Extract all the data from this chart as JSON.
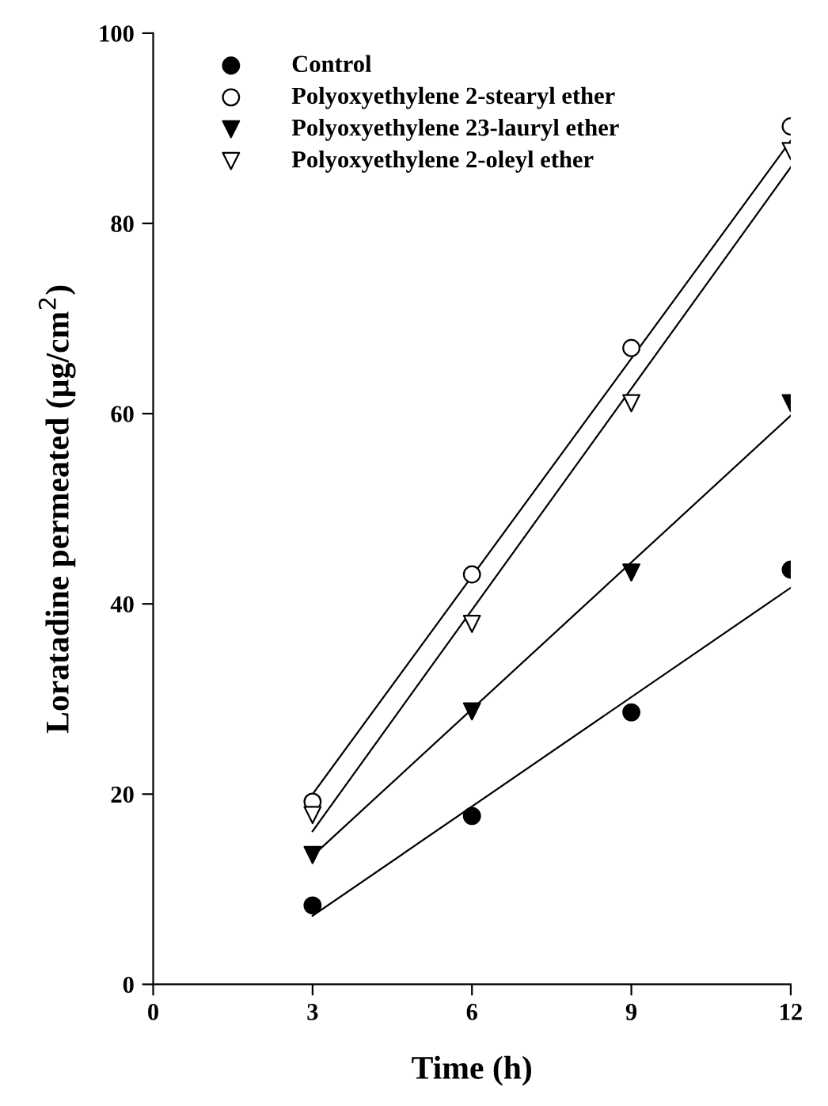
{
  "chart_data": {
    "type": "scatter",
    "xlabel": "Time (h)",
    "ylabel": "Loratadine permeated (µg/cm$^{2}$)",
    "xlim": [
      0,
      12
    ],
    "ylim": [
      0,
      100
    ],
    "xticks": [
      0,
      3,
      6,
      9,
      12
    ],
    "yticks": [
      0,
      20,
      40,
      60,
      80,
      100
    ],
    "grid": false,
    "legend": "top left",
    "series": [
      {
        "name": "Control",
        "color": "#000000",
        "marker": "circle",
        "x": [
          3,
          6,
          9,
          12
        ],
        "values": [
          8.3,
          17.7,
          28.6,
          43.6
        ]
      },
      {
        "name": "Polyoxyethylene 2-stearyl ether",
        "color": "#ffffff",
        "marker": "circle",
        "x": [
          3,
          6,
          9,
          12
        ],
        "values": [
          19.2,
          43.1,
          66.9,
          90.2
        ]
      },
      {
        "name": "Polyoxyethylene 23-lauryl ether",
        "color": "#000000",
        "marker": "triangle",
        "x": [
          3,
          6,
          9,
          12
        ],
        "values": [
          13.6,
          28.7,
          43.3,
          61.1
        ]
      },
      {
        "name": "Polyoxyethylene 2-oleyl ether",
        "color": "#ffffff",
        "marker": "triangle",
        "x": [
          3,
          6,
          9,
          12
        ],
        "values": [
          17.8,
          37.9,
          61.1,
          87.6
        ]
      },
      {
        "type": "line",
        "color": "#000000",
        "x": [
          3,
          12
        ],
        "values": [
          7.2,
          41.7
        ]
      },
      {
        "type": "line",
        "color": "#000000",
        "x": [
          3,
          12
        ],
        "values": [
          20.0,
          88.7
        ]
      },
      {
        "type": "line",
        "color": "#000000",
        "x": [
          3,
          12
        ],
        "values": [
          13.5,
          59.8
        ]
      },
      {
        "type": "line",
        "color": "#000000",
        "x": [
          3,
          12
        ],
        "values": [
          16.1,
          85.9
        ]
      }
    ]
  }
}
